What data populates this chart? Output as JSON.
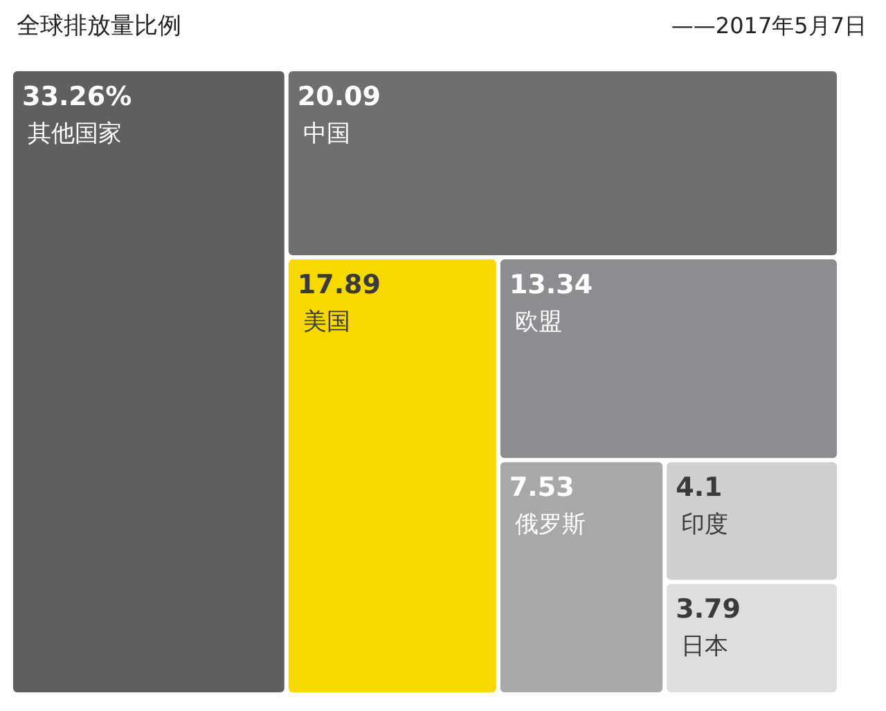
{
  "chart_data": {
    "type": "other",
    "title": "全球排放量比例",
    "annotations": [
      "——2017年5月7日"
    ],
    "categories": [
      "其他国家",
      "中国",
      "美国",
      "欧盟",
      "俄罗斯",
      "印度",
      "日本"
    ],
    "values": [
      33.26,
      20.09,
      17.89,
      13.34,
      7.53,
      4.1,
      3.79
    ],
    "value_labels": [
      "33.26%",
      "20.09",
      "17.89",
      "13.34",
      "7.53",
      "4.1",
      "3.79"
    ],
    "colors": [
      "#5f5f5f",
      "#6f6f6f",
      "#f7d900",
      "#8d8c91",
      "#a8a8a8",
      "#cfcfcf",
      "#dedede"
    ]
  }
}
